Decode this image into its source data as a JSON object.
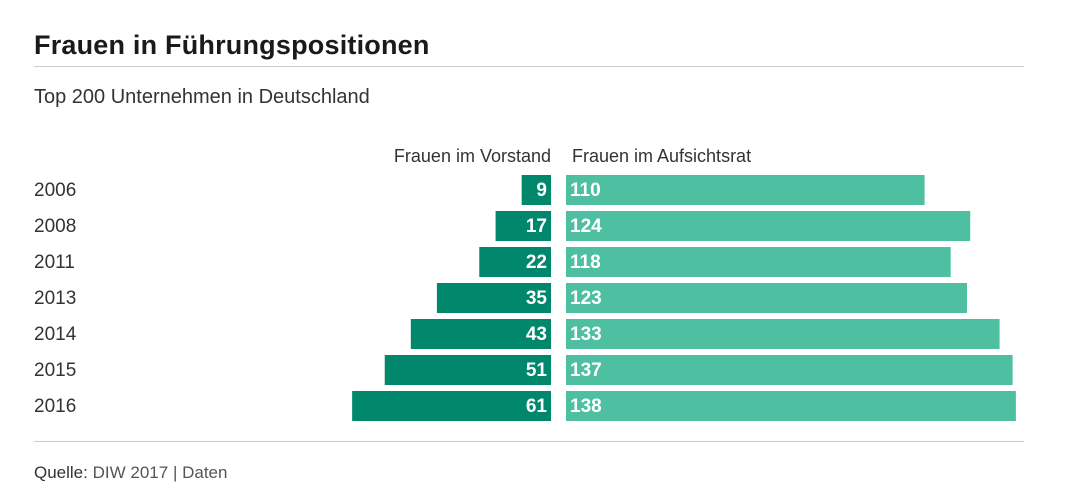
{
  "title": "Frauen in Führungspositionen",
  "subtitle": "Top 200 Unternehmen in Deutschland",
  "source": {
    "label": "Quelle:",
    "text": "DIW 2017",
    "separator": "|",
    "link": "Daten"
  },
  "colors": {
    "series_left": "#00876c",
    "series_right": "#4fbfa1",
    "label_on_bar": "#ffffff",
    "axis_text": "#333333"
  },
  "chart_data": {
    "type": "bar",
    "orientation": "horizontal-diverging",
    "categories": [
      "2006",
      "2008",
      "2011",
      "2013",
      "2014",
      "2015",
      "2016"
    ],
    "series": [
      {
        "name": "Frauen im Vorstand",
        "values": [
          9,
          17,
          22,
          35,
          43,
          51,
          61
        ]
      },
      {
        "name": "Frauen im Aufsichtsrat",
        "values": [
          110,
          124,
          118,
          123,
          133,
          137,
          138
        ]
      }
    ]
  }
}
